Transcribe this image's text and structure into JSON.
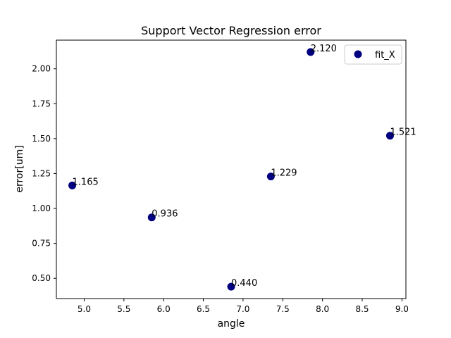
{
  "chart_data": {
    "type": "scatter",
    "title": "Support Vector Regression error",
    "xlabel": "angle",
    "ylabel": "error[um]",
    "xlim": [
      4.65,
      9.05
    ],
    "ylim": [
      0.355,
      2.205
    ],
    "xticks": [
      5.0,
      5.5,
      6.0,
      6.5,
      7.0,
      7.5,
      8.0,
      8.5,
      9.0
    ],
    "xtick_labels": [
      "5.0",
      "5.5",
      "6.0",
      "6.5",
      "7.0",
      "7.5",
      "8.0",
      "8.5",
      "9.0"
    ],
    "yticks": [
      0.5,
      0.75,
      1.0,
      1.25,
      1.5,
      1.75,
      2.0
    ],
    "ytick_labels": [
      "0.50",
      "0.75",
      "1.00",
      "1.25",
      "1.50",
      "1.75",
      "2.00"
    ],
    "grid": false,
    "legend_position": "top-right",
    "series": [
      {
        "name": "fit_X",
        "color": "#000080",
        "x": [
          4.85,
          5.85,
          6.85,
          7.35,
          7.85,
          8.85
        ],
        "y": [
          1.165,
          0.936,
          0.44,
          1.229,
          2.12,
          1.521
        ],
        "labels": [
          "1.165",
          "0.936",
          "0.440",
          "1.229",
          "2.120",
          "1.521"
        ]
      }
    ]
  }
}
